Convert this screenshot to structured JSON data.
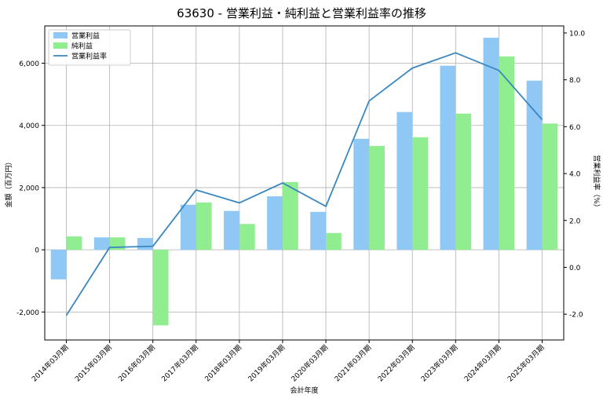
{
  "chart_data": {
    "type": "bar",
    "title": "63630 - 営業利益・純利益と営業利益率の推移",
    "xlabel": "会計年度",
    "ylabel": "金額（百万円）",
    "ylabel_right": "営業利益率（%）",
    "categories": [
      "2014年03月期",
      "2015年03月期",
      "2016年03月期",
      "2017年03月期",
      "2018年03月期",
      "2019年03月期",
      "2020年03月期",
      "2021年03月期",
      "2022年03月期",
      "2023年03月期",
      "2024年03月期",
      "2025年03月期"
    ],
    "series": [
      {
        "name": "営業利益",
        "type": "bar",
        "color": "#90c8f5",
        "values": [
          -950,
          400,
          380,
          1450,
          1250,
          1720,
          1220,
          3570,
          4430,
          5920,
          6820,
          5440
        ]
      },
      {
        "name": "純利益",
        "type": "bar",
        "color": "#90ee90",
        "values": [
          430,
          400,
          -2430,
          1520,
          830,
          2180,
          540,
          3340,
          3620,
          4380,
          6220,
          4060
        ]
      },
      {
        "name": "営業利益率",
        "type": "line",
        "axis": "right",
        "color": "#3a87c0",
        "values": [
          -2.05,
          0.85,
          0.9,
          3.3,
          2.75,
          3.6,
          2.6,
          7.1,
          8.5,
          9.15,
          8.4,
          6.3
        ]
      }
    ],
    "ylim": [
      -2900,
      7200
    ],
    "yticks": [
      -2000,
      0,
      2000,
      4000,
      6000
    ],
    "ytick_labels": [
      "-2,000",
      "0",
      "2,000",
      "4,000",
      "6,000"
    ],
    "y2lim": [
      -3.1,
      10.3
    ],
    "y2ticks": [
      -2.0,
      0.0,
      2.0,
      4.0,
      6.0,
      8.0,
      10.0
    ],
    "y2tick_labels": [
      "-2.0",
      "0.0",
      "2.0",
      "4.0",
      "6.0",
      "8.0",
      "10.0"
    ],
    "grid": true,
    "legend_position": "top-left"
  }
}
